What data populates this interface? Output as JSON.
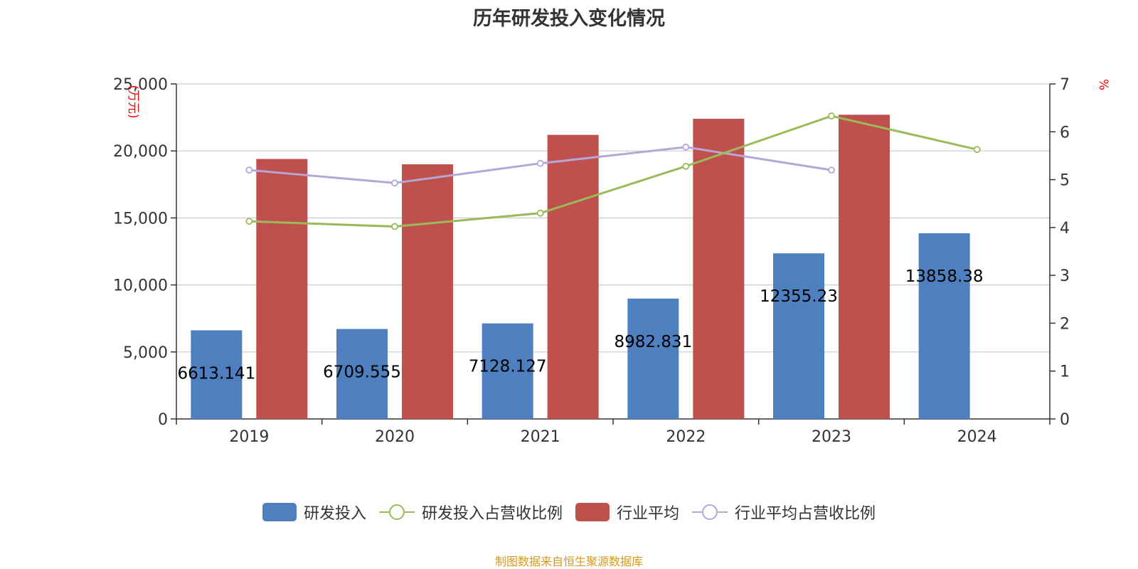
{
  "title": "历年研发投入变化情况",
  "source": "制图数据来自恒生聚源数据库",
  "colors": {
    "rd_bar": "#4e7fbf",
    "ind_bar": "#c0504d",
    "rd_ratio": "#9bbb59",
    "ind_ratio": "#b4a7d6",
    "axis_unit": "#ff0000",
    "grid": "#cccccc",
    "axis": "#333333"
  },
  "chart_data": {
    "type": "bar",
    "categories": [
      "2019",
      "2020",
      "2021",
      "2022",
      "2023",
      "2024"
    ],
    "y_left": {
      "label": "(万元)",
      "ylim": [
        0,
        25000
      ],
      "ticks": [
        0,
        5000,
        10000,
        15000,
        20000,
        25000
      ],
      "tick_labels": [
        "0",
        "5,000",
        "10,000",
        "15,000",
        "20,000",
        "25,000"
      ]
    },
    "y_right": {
      "label": "%",
      "ylim": [
        0,
        7
      ],
      "ticks": [
        0,
        1,
        2,
        3,
        4,
        5,
        6,
        7
      ],
      "tick_labels": [
        "0",
        "1",
        "2",
        "3",
        "4",
        "5",
        "6",
        "7"
      ]
    },
    "grid": true,
    "legend_position": "bottom",
    "series": [
      {
        "name": "研发投入",
        "type": "bar",
        "axis": "left",
        "values": [
          6613.141,
          6709.555,
          7128.127,
          8982.831,
          12355.23,
          13858.38
        ],
        "labels": [
          "6613.141",
          "6709.555",
          "7128.127",
          "8982.831",
          "12355.23",
          "13858.38"
        ]
      },
      {
        "name": "研发投入占营收比例",
        "type": "line",
        "axis": "right",
        "values": [
          4.13,
          4.02,
          4.3,
          5.28,
          6.33,
          5.63
        ]
      },
      {
        "name": "行业平均",
        "type": "bar",
        "axis": "left",
        "values": [
          19400,
          19000,
          21200,
          22400,
          22700,
          null
        ]
      },
      {
        "name": "行业平均占营收比例",
        "type": "line",
        "axis": "right",
        "values": [
          5.2,
          4.93,
          5.34,
          5.68,
          5.2,
          null
        ]
      }
    ]
  }
}
